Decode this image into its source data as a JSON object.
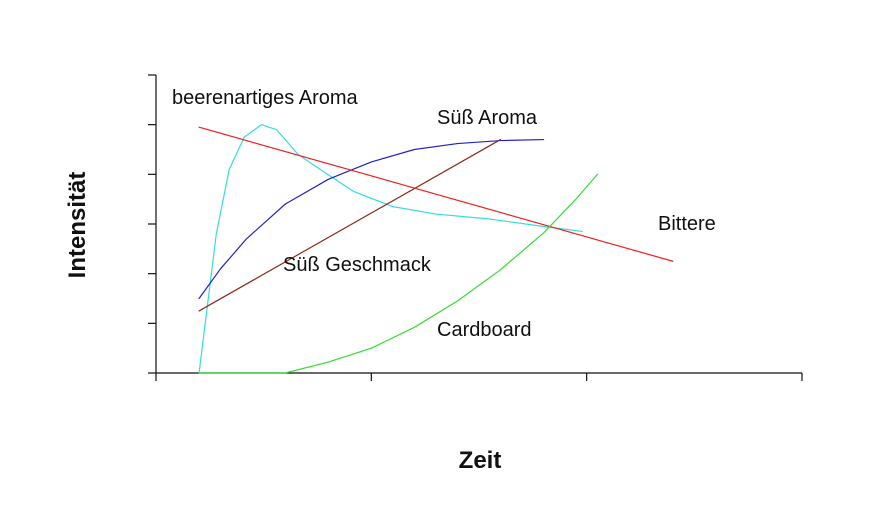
{
  "chart_data": {
    "type": "line",
    "title": "",
    "xlabel": "Zeit",
    "ylabel": "Intensität",
    "xlim": [
      0,
      3
    ],
    "ylim": [
      0,
      6
    ],
    "x_ticks": [
      0,
      1,
      2,
      3
    ],
    "y_ticks": [
      0,
      1,
      2,
      3,
      4,
      5,
      6
    ],
    "tick_labels_shown": false,
    "grid": false,
    "legend": "none (series labelled directly on the plot)",
    "series": [
      {
        "name": "beerenartiges Aroma",
        "color": "#33dddd",
        "points": [
          [
            0.2,
            0.0
          ],
          [
            0.28,
            2.8
          ],
          [
            0.34,
            4.1
          ],
          [
            0.41,
            4.75
          ],
          [
            0.49,
            5.0
          ],
          [
            0.56,
            4.9
          ],
          [
            0.66,
            4.4
          ],
          [
            0.78,
            4.05
          ],
          [
            0.92,
            3.65
          ],
          [
            1.1,
            3.35
          ],
          [
            1.3,
            3.2
          ],
          [
            1.55,
            3.1
          ],
          [
            1.8,
            2.95
          ],
          [
            1.98,
            2.85
          ]
        ]
      },
      {
        "name": "Süß Aroma",
        "color": "#2222cc",
        "points": [
          [
            0.2,
            1.5
          ],
          [
            0.3,
            2.1
          ],
          [
            0.42,
            2.7
          ],
          [
            0.6,
            3.4
          ],
          [
            0.8,
            3.9
          ],
          [
            1.0,
            4.25
          ],
          [
            1.2,
            4.5
          ],
          [
            1.4,
            4.62
          ],
          [
            1.6,
            4.68
          ],
          [
            1.8,
            4.7
          ]
        ]
      },
      {
        "name": "Süß Geschmack",
        "color": "#8b2a1a",
        "points": [
          [
            0.2,
            1.25
          ],
          [
            1.6,
            4.7
          ]
        ]
      },
      {
        "name": "Bittere",
        "color": "#ee2222",
        "points": [
          [
            0.2,
            4.95
          ],
          [
            2.4,
            2.25
          ]
        ]
      },
      {
        "name": "Cardboard",
        "color": "#33dd33",
        "points": [
          [
            0.2,
            0.0
          ],
          [
            0.6,
            0.0
          ],
          [
            0.8,
            0.22
          ],
          [
            1.0,
            0.5
          ],
          [
            1.2,
            0.92
          ],
          [
            1.4,
            1.45
          ],
          [
            1.6,
            2.08
          ],
          [
            1.8,
            2.82
          ],
          [
            1.95,
            3.5
          ],
          [
            2.05,
            4.0
          ]
        ]
      }
    ]
  }
}
